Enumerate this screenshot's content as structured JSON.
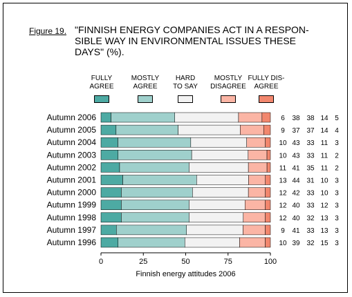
{
  "figure_label": "Figure 19.",
  "chart_data": {
    "type": "bar",
    "stacked": true,
    "orientation": "horizontal",
    "title": "\"FINNISH ENERGY COMPANIES ACT IN A RESPON-\nSIBLE WAY IN ENVIRONMENTAL ISSUES THESE\nDAYS\" (%).",
    "xlabel": "Finnish energy attitudes 2006",
    "xlim": [
      0,
      100
    ],
    "xticks": [
      "0",
      "25",
      "50",
      "75",
      "100"
    ],
    "categories": [
      "Autumn 2006",
      "Autumn 2005",
      "Autumn 2004",
      "Autumn 2003",
      "Autumn 2002",
      "Autumn 2001",
      "Autumn 2000",
      "Autumn 1999",
      "Autumn 1998",
      "Autumn 1997",
      "Autumn 1996"
    ],
    "series": [
      {
        "name": "FULLY\nAGREE",
        "color": "#4daaa3",
        "values": [
          6,
          9,
          10,
          10,
          11,
          13,
          12,
          12,
          12,
          9,
          10
        ]
      },
      {
        "name": "MOSTLY\nAGREE",
        "color": "#9fd0cc",
        "values": [
          38,
          37,
          43,
          43,
          41,
          44,
          42,
          40,
          40,
          41,
          39
        ]
      },
      {
        "name": "HARD\nTO SAY",
        "color": "#f2f2f2",
        "values": [
          38,
          37,
          33,
          33,
          35,
          31,
          33,
          33,
          32,
          33,
          32
        ]
      },
      {
        "name": "MOSTLY\nDISAGREE",
        "color": "#fbb5a5",
        "values": [
          14,
          14,
          11,
          11,
          11,
          10,
          10,
          12,
          13,
          13,
          15
        ]
      },
      {
        "name": "FULLY DIS-\nAGREE",
        "color": "#f2876e",
        "values": [
          5,
          4,
          3,
          2,
          2,
          3,
          3,
          3,
          3,
          3,
          3
        ]
      }
    ]
  }
}
